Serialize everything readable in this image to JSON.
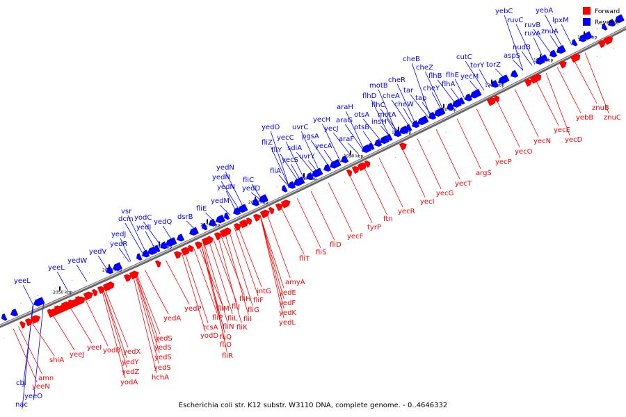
{
  "caption": "Escherichia coli str. K12 substr. W3110 DNA, complete genome. - 0..4646332",
  "legend": [
    {
      "label": "Forward",
      "color": "#ff0000"
    },
    {
      "label": "Reverse",
      "color": "#0000ff"
    }
  ],
  "colors": {
    "forward": "#ff0000",
    "reverse": "#0000ff",
    "backbone": "#8c8c8c"
  },
  "ticks": [
    "1940 kbp",
    "1950 kbp",
    "1960 kbp",
    "1970 kbp",
    "1980 kbp",
    "1990 kbp",
    "2000 kbp",
    "2010 kbp",
    "2020 kbp",
    "2030 kbp",
    "2040 kbp",
    "2050 kbp"
  ],
  "reverse_genes": [
    "yeeO",
    "nac",
    "cbl",
    "yeeL",
    "yeeL",
    "yedW",
    "yedV",
    "yedR",
    "yedJ",
    "dcm",
    "vsr",
    "yodC",
    "yedI",
    "yedQ",
    "dsrB",
    "fliE",
    "yedM",
    "yedN",
    "yedN",
    "yedN",
    "yedD",
    "fliC",
    "fliA",
    "fliY",
    "fliZ",
    "yedO",
    "yecS",
    "yecC",
    "sdiA",
    "uvrY",
    "uvrC",
    "pgsA",
    "yecA",
    "yecJ",
    "yecH",
    "araF",
    "araG",
    "araH",
    "otsB",
    "otsA",
    "insH",
    "motA",
    "flhD",
    "flhC",
    "motB",
    "cheA",
    "cheW",
    "tar",
    "cheR",
    "tap",
    "cheB",
    "cheZ",
    "cheY",
    "flhB",
    "flhA",
    "flhE",
    "yecM",
    "cutC",
    "torY",
    "torZ",
    "aspS",
    "nudB",
    "ruvA",
    "ruvB",
    "ruvC",
    "yebC",
    "znuA",
    "lpxM",
    "yebA"
  ],
  "forward_genes": [
    "yeeN",
    "amn",
    "shiA",
    "yeeJ",
    "yeeI",
    "yodB",
    "yedX",
    "yedY",
    "yedZ",
    "yodA",
    "yedS",
    "yedS",
    "yedS",
    "yedS",
    "hchA",
    "yedA",
    "yedP",
    "rcsA",
    "yodD",
    "fliP",
    "fliM",
    "fliN",
    "fliL",
    "fliO",
    "fliQ",
    "fliR",
    "fliJ",
    "fliK",
    "fliH",
    "fliG",
    "fliI",
    "intG",
    "fliF",
    "amyA",
    "yedE",
    "yedF",
    "yedK",
    "yedL",
    "fliT",
    "fliS",
    "fliD",
    "yecF",
    "tyrP",
    "ftn",
    "yecR",
    "yecI",
    "yecG",
    "yecT",
    "argS",
    "yecP",
    "yecO",
    "yecN",
    "yecE",
    "yecD",
    "yebB",
    "znuB",
    "znuC"
  ]
}
